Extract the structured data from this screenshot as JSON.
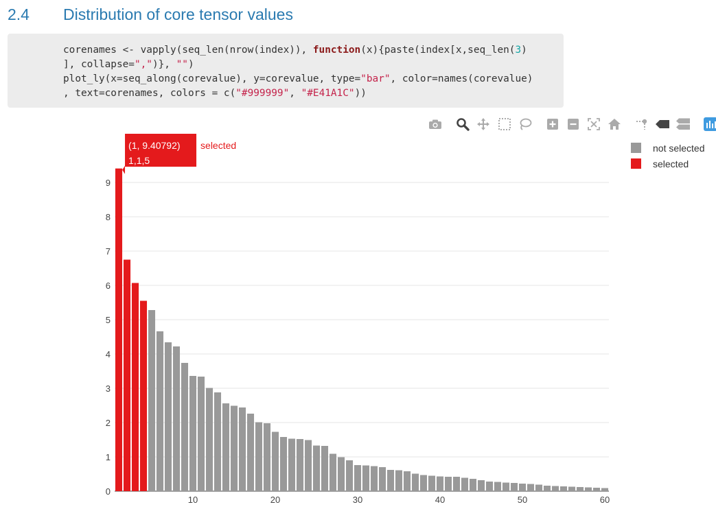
{
  "section": {
    "number": "2.4",
    "title": "Distribution of core tensor values"
  },
  "code": {
    "lines": [
      [
        {
          "t": "corenames <- vapply(seq_len(nrow(index)), "
        },
        {
          "t": "function",
          "c": "kw"
        },
        {
          "t": "(x){paste(index[x,seq_len("
        },
        {
          "t": "3",
          "c": "num"
        },
        {
          "t": ")"
        }
      ],
      [
        {
          "t": "], collapse="
        },
        {
          "t": "\",\"",
          "c": "str"
        },
        {
          "t": ")}, "
        },
        {
          "t": "\"\"",
          "c": "str"
        },
        {
          "t": ")"
        }
      ],
      [
        {
          "t": "plot_ly(x=seq_along(corevalue), y=corevalue, type="
        },
        {
          "t": "\"bar\"",
          "c": "str"
        },
        {
          "t": ", color=names(corevalue)"
        }
      ],
      [
        {
          "t": ", text=corenames, colors = c("
        },
        {
          "t": "\"#999999\"",
          "c": "str"
        },
        {
          "t": ", "
        },
        {
          "t": "\"#E41A1C\"",
          "c": "str"
        },
        {
          "t": "))"
        }
      ]
    ]
  },
  "toolbar": {
    "icons": [
      "camera-icon",
      "zoom-icon",
      "pan-icon",
      "box-select-icon",
      "lasso-select-icon",
      "zoom-in-icon",
      "zoom-out-icon",
      "autoscale-icon",
      "reset-axes-icon",
      "spike-lines-icon",
      "hover-closest-icon",
      "hover-compare-icon",
      "plotly-logo-icon"
    ]
  },
  "chart_data": {
    "type": "bar",
    "x": [
      1,
      2,
      3,
      4,
      5,
      6,
      7,
      8,
      9,
      10,
      11,
      12,
      13,
      14,
      15,
      16,
      17,
      18,
      19,
      20,
      21,
      22,
      23,
      24,
      25,
      26,
      27,
      28,
      29,
      30,
      31,
      32,
      33,
      34,
      35,
      36,
      37,
      38,
      39,
      40,
      41,
      42,
      43,
      44,
      45,
      46,
      47,
      48,
      49,
      50,
      51,
      52,
      53,
      54,
      55,
      56,
      57,
      58,
      59,
      60
    ],
    "values": [
      9.40792,
      6.75,
      6.07,
      5.55,
      5.28,
      4.66,
      4.34,
      4.22,
      3.74,
      3.36,
      3.34,
      3.01,
      2.88,
      2.56,
      2.49,
      2.44,
      2.26,
      2.01,
      1.98,
      1.73,
      1.58,
      1.53,
      1.52,
      1.49,
      1.33,
      1.32,
      1.09,
      0.99,
      0.9,
      0.76,
      0.75,
      0.73,
      0.7,
      0.62,
      0.61,
      0.58,
      0.51,
      0.47,
      0.45,
      0.43,
      0.42,
      0.42,
      0.39,
      0.36,
      0.32,
      0.28,
      0.27,
      0.25,
      0.24,
      0.22,
      0.21,
      0.19,
      0.16,
      0.15,
      0.14,
      0.13,
      0.12,
      0.11,
      0.1,
      0.09
    ],
    "groups": [
      "selected",
      "selected",
      "selected",
      "selected",
      "not selected",
      "not selected",
      "not selected",
      "not selected",
      "not selected",
      "not selected",
      "not selected",
      "not selected",
      "not selected",
      "not selected",
      "not selected",
      "not selected",
      "not selected",
      "not selected",
      "not selected",
      "not selected",
      "not selected",
      "not selected",
      "not selected",
      "not selected",
      "not selected",
      "not selected",
      "not selected",
      "not selected",
      "not selected",
      "not selected",
      "not selected",
      "not selected",
      "not selected",
      "not selected",
      "not selected",
      "not selected",
      "not selected",
      "not selected",
      "not selected",
      "not selected",
      "not selected",
      "not selected",
      "not selected",
      "not selected",
      "not selected",
      "not selected",
      "not selected",
      "not selected",
      "not selected",
      "not selected",
      "not selected",
      "not selected",
      "not selected",
      "not selected",
      "not selected",
      "not selected",
      "not selected",
      "not selected",
      "not selected",
      "not selected"
    ],
    "series": [
      {
        "name": "not selected",
        "color": "#999999"
      },
      {
        "name": "selected",
        "color": "#E41A1C"
      }
    ],
    "xticks": [
      10,
      20,
      30,
      40,
      50,
      60
    ],
    "yticks": [
      0,
      1,
      2,
      3,
      4,
      5,
      6,
      7,
      8,
      9
    ],
    "xlim": [
      0.5,
      60.5
    ],
    "ylim": [
      0,
      9.9
    ],
    "grid": true,
    "legend_position": "top-right",
    "tooltip": {
      "bar": 1,
      "value_text": "(1, 9.40792)",
      "label": "1,1,5",
      "series": "selected"
    }
  }
}
